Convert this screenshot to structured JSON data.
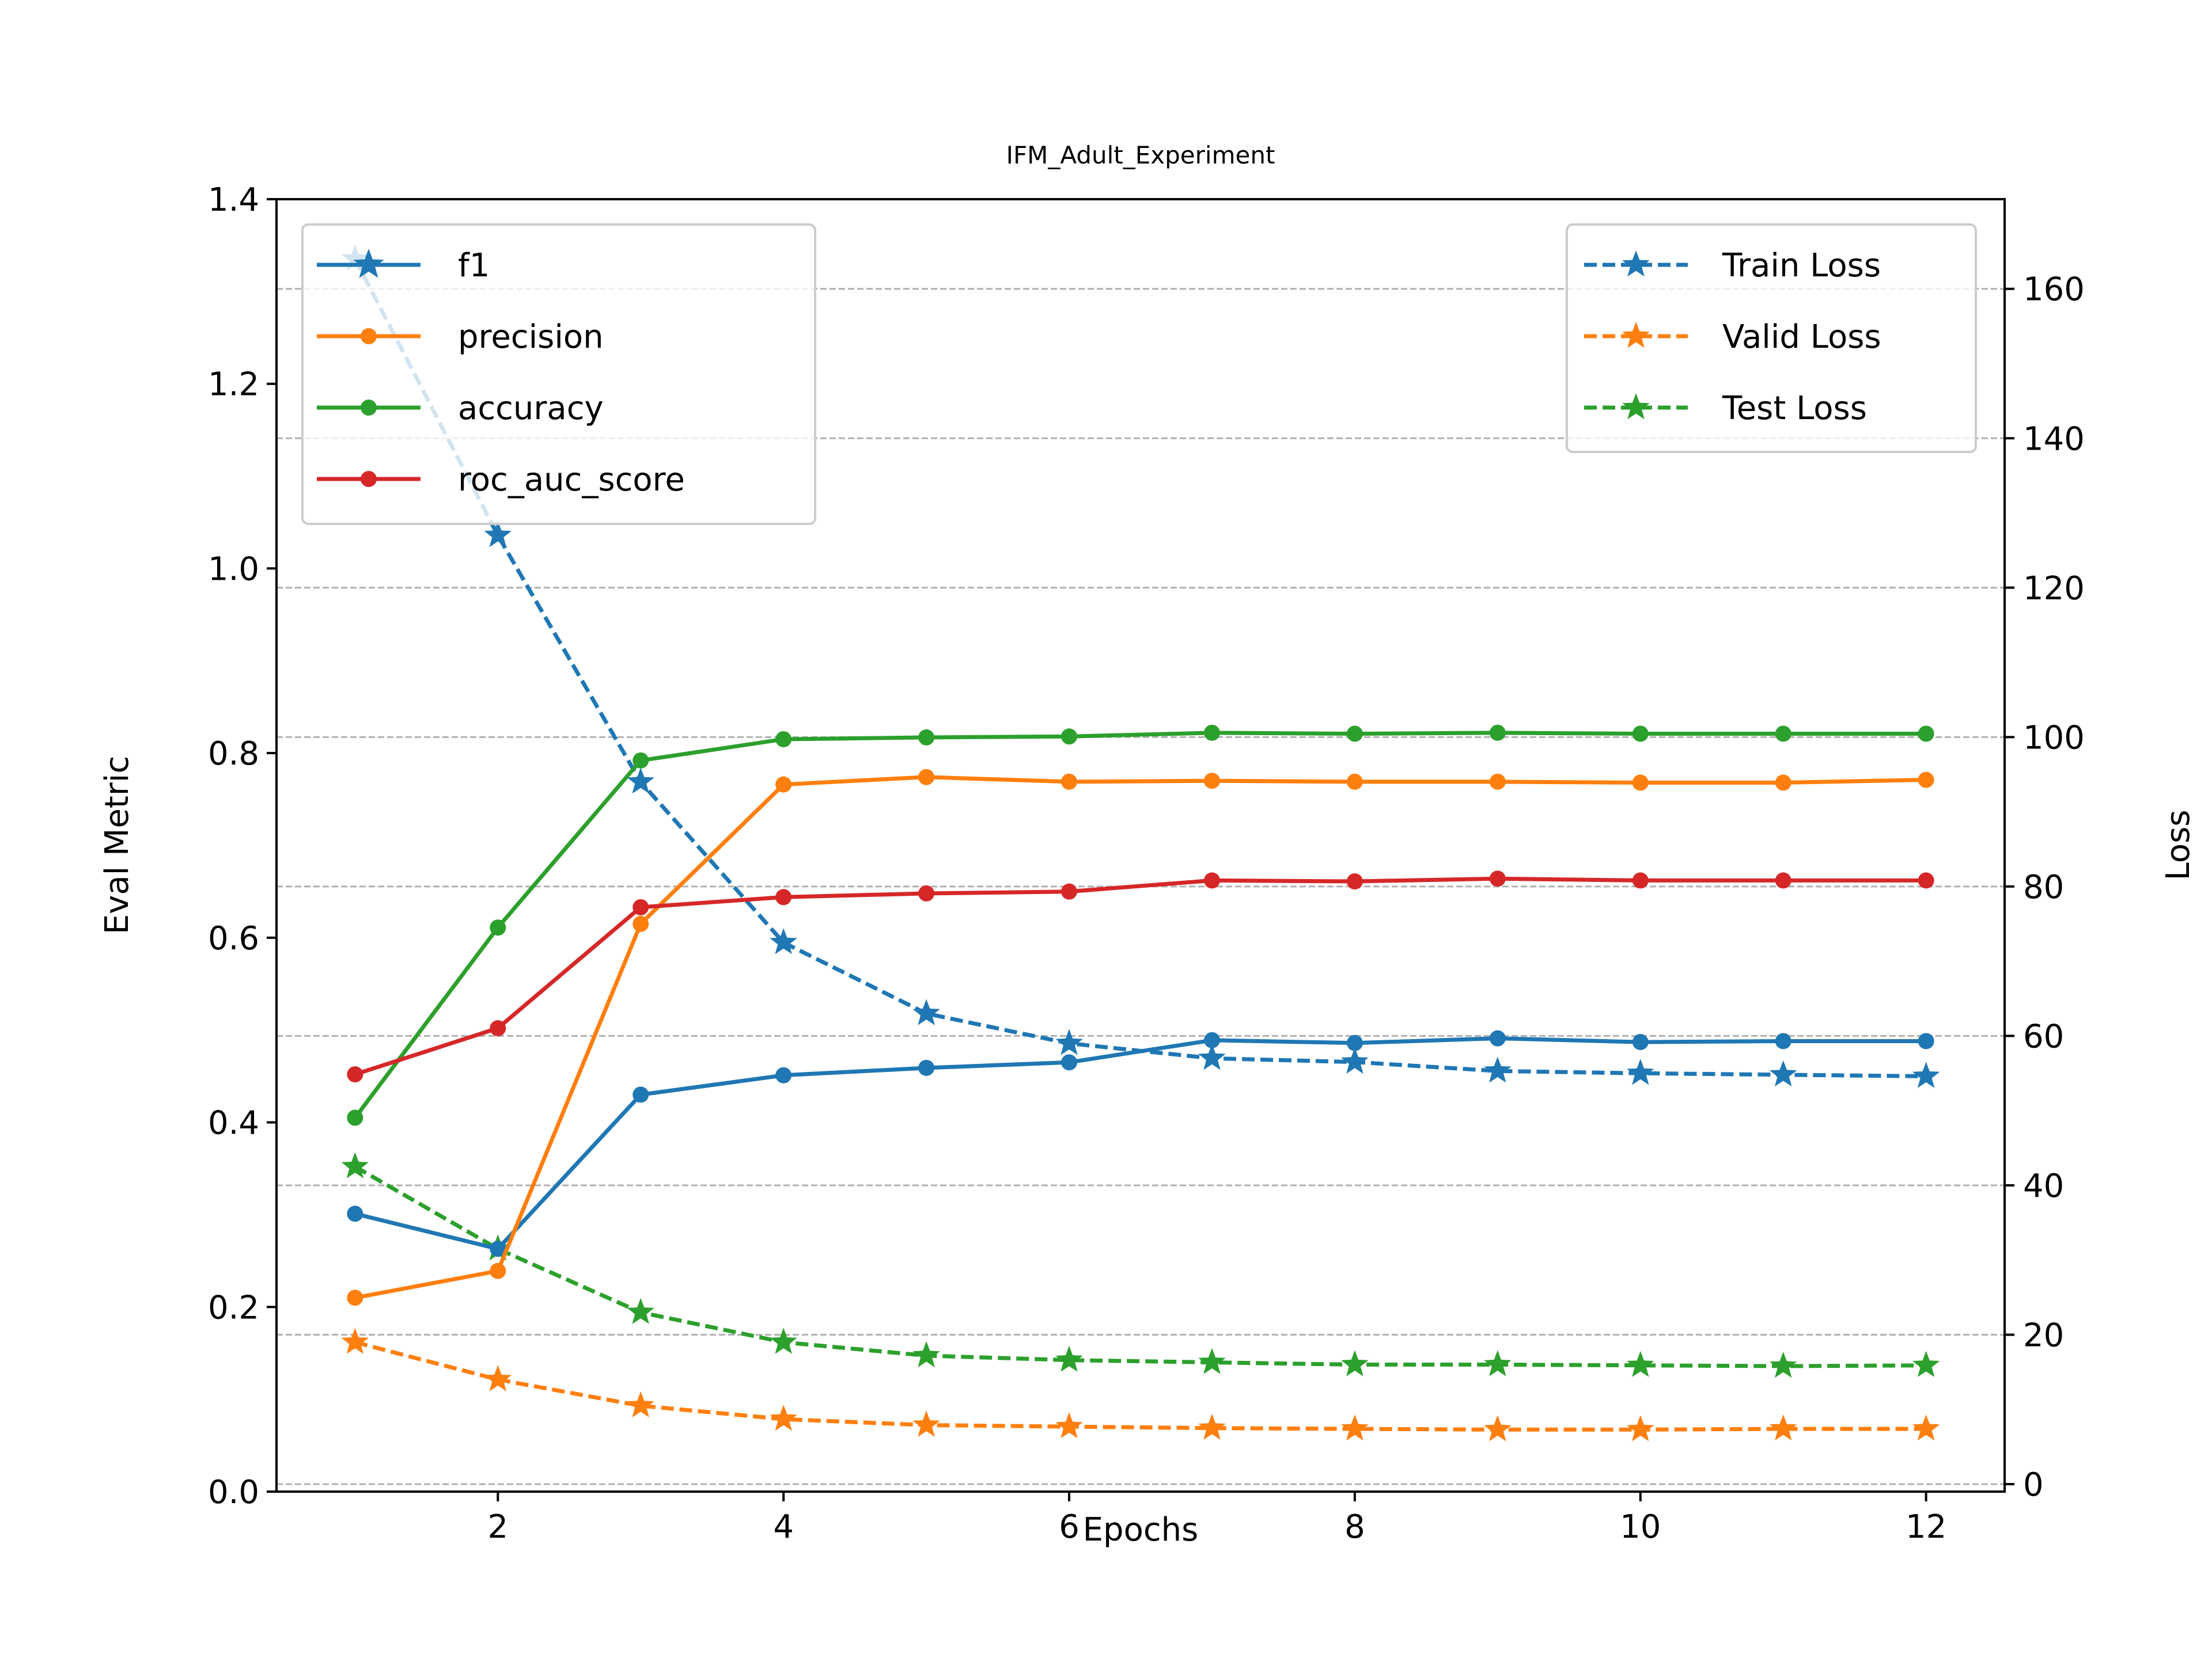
{
  "chart_data": {
    "type": "line",
    "title": "IFM_Adult_Experiment",
    "xlabel": "Epochs",
    "ylabel": "Eval Metric",
    "y2label": "Loss",
    "x": [
      1,
      2,
      3,
      4,
      5,
      6,
      7,
      8,
      9,
      10,
      11,
      12
    ],
    "xticks": [
      "2",
      "4",
      "6",
      "8",
      "10",
      "12"
    ],
    "xlim": [
      0.45,
      12.55
    ],
    "ylim": [
      0,
      1.4
    ],
    "yticks": [
      "0.0",
      "0.2",
      "0.4",
      "0.6",
      "0.8",
      "1.0",
      "1.2",
      "1.4"
    ],
    "y2lim": [
      -1,
      172
    ],
    "y2ticks": [
      "0",
      "20",
      "40",
      "60",
      "80",
      "100",
      "120",
      "140",
      "160"
    ],
    "grid": "horizontal dashed on loss axis",
    "metric_legend_position": "top-left",
    "loss_legend_position": "top-right",
    "metric_series": [
      {
        "name": "f1",
        "color": "#1f77b4",
        "values": [
          0.301,
          0.263,
          0.43,
          0.451,
          0.459,
          0.465,
          0.489,
          0.486,
          0.491,
          0.487,
          0.488,
          0.488
        ]
      },
      {
        "name": "precision",
        "color": "#ff7f0e",
        "values": [
          0.21,
          0.239,
          0.615,
          0.766,
          0.774,
          0.769,
          0.77,
          0.769,
          0.769,
          0.768,
          0.768,
          0.771
        ]
      },
      {
        "name": "accuracy",
        "color": "#2ca02c",
        "values": [
          0.405,
          0.611,
          0.792,
          0.815,
          0.817,
          0.818,
          0.822,
          0.821,
          0.822,
          0.821,
          0.821,
          0.821
        ]
      },
      {
        "name": "roc_auc_score",
        "color": "#d62728",
        "values": [
          0.452,
          0.502,
          0.633,
          0.644,
          0.648,
          0.65,
          0.662,
          0.661,
          0.664,
          0.662,
          0.662,
          0.662
        ]
      }
    ],
    "loss_series": [
      {
        "name": "Train Loss",
        "color": "#1f77b4",
        "values": [
          164,
          127,
          94,
          72.5,
          63,
          59,
          57,
          56.5,
          55.3,
          55,
          54.8,
          54.6
        ]
      },
      {
        "name": "Valid Loss",
        "color": "#ff7f0e",
        "values": [
          19,
          14,
          10.5,
          8.7,
          7.9,
          7.7,
          7.5,
          7.4,
          7.3,
          7.3,
          7.4,
          7.4
        ]
      },
      {
        "name": "Test Loss",
        "color": "#2ca02c",
        "values": [
          42.5,
          31.5,
          23,
          19,
          17.2,
          16.6,
          16.3,
          16,
          16,
          15.9,
          15.8,
          15.9
        ]
      }
    ]
  }
}
